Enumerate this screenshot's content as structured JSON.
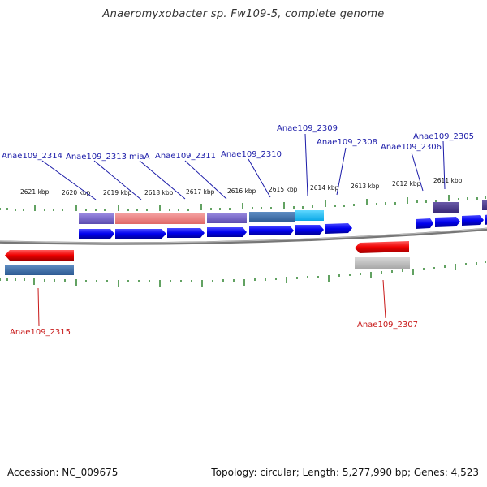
{
  "title": "Anaeromyxobacter sp. Fw109-5, complete genome",
  "footer": {
    "accession": "Accession: NC_009675",
    "meta": "Topology: circular; Length: 5,277,990 bp; Genes: 4,523"
  },
  "colors": {
    "forward_cds": "#0000ee",
    "reverse_cds": "#ee0000",
    "label_top": "#1a1aa8",
    "label_bottom": "#c81818",
    "tick": "#1f7a1f",
    "backbone": "#7a7a7a"
  },
  "scale": {
    "unit": "kbp",
    "ticks": [
      2621,
      2620,
      2619,
      2618,
      2617,
      2616,
      2615,
      2614,
      2613,
      2612,
      2611
    ]
  },
  "top_gene_labels": [
    "Anae109_2314",
    "Anae109_2313",
    "miaA",
    "Anae109_2311",
    "Anae109_2310",
    "Anae109_2309",
    "Anae109_2308",
    "Anae109_2306",
    "Anae109_2305"
  ],
  "bottom_gene_labels": [
    "Anae109_2315",
    "Anae109_2307"
  ],
  "tick_labels": [
    "2621 kbp",
    "2620 kbp",
    "2619 kbp",
    "2618 kbp",
    "2617 kbp",
    "2616 kbp",
    "2615 kbp",
    "2614 kbp",
    "2613 kbp",
    "2612 kbp",
    "2611 kbp"
  ]
}
